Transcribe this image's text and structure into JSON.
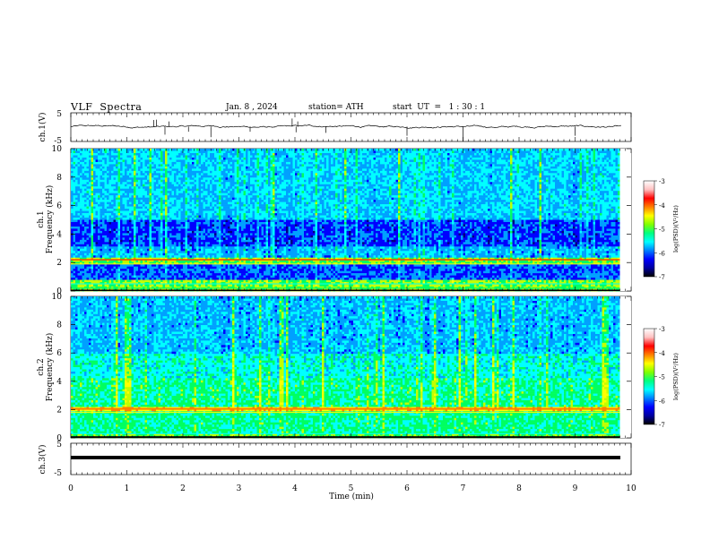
{
  "header": {
    "title": "VLF  Spectra",
    "date": "Jan. 8 , 2024",
    "station": "station= ATH",
    "start_ut": "start  UT  =   1 : 30 : 1"
  },
  "colors": {
    "colormap": [
      "#000080",
      "#0000ff",
      "#00a0ff",
      "#00ffff",
      "#00ff60",
      "#c0ff00",
      "#ffff00",
      "#ff8000",
      "#ff0000",
      "#ffffff"
    ]
  },
  "chart_data": [
    {
      "type": "line",
      "name": "ch1-waveform",
      "ylabel": "ch.1(V)",
      "ylim": [
        -5,
        5
      ],
      "yticks": [
        "5",
        "-5"
      ],
      "xlim": [
        0,
        10
      ],
      "description_values": {
        "baseline_V": 0.2,
        "min_spike_V": -5,
        "max_spike_V": 3
      }
    },
    {
      "type": "heatmap",
      "name": "ch1-spectrogram",
      "ylabel": "ch.1\nFrequency (kHz)",
      "ylim": [
        0,
        10
      ],
      "yticks": [
        "0",
        "2",
        "4",
        "6",
        "8",
        "10"
      ],
      "xlim": [
        0,
        9.8
      ],
      "colorbar": {
        "label": "log(PSD)(V²/Hz)",
        "range": [
          -7,
          -3
        ],
        "ticks": [
          "-3",
          "-4",
          "-5",
          "-6",
          "-7"
        ]
      }
    },
    {
      "type": "heatmap",
      "name": "ch2-spectrogram",
      "ylabel": "ch.2\nFrequency (kHz)",
      "ylim": [
        0,
        10
      ],
      "yticks": [
        "0",
        "2",
        "4",
        "6",
        "8",
        "10"
      ],
      "xlim": [
        0,
        9.8
      ],
      "colorbar": {
        "label": "log(PSD)(V²/Hz)",
        "range": [
          -7,
          -3
        ],
        "ticks": [
          "-3",
          "-4",
          "-5",
          "-6",
          "-7"
        ]
      }
    },
    {
      "type": "line",
      "name": "ch3-waveform",
      "ylabel": "ch.3(V)",
      "ylim": [
        -5,
        5
      ],
      "yticks": [
        "5",
        "-5"
      ],
      "xlim": [
        0,
        10
      ],
      "description_values": {
        "level_V": 0
      }
    }
  ],
  "xaxis": {
    "label": "Time  (min)",
    "ticks": [
      "0",
      "1",
      "2",
      "3",
      "4",
      "5",
      "6",
      "7",
      "8",
      "9",
      "10"
    ]
  }
}
